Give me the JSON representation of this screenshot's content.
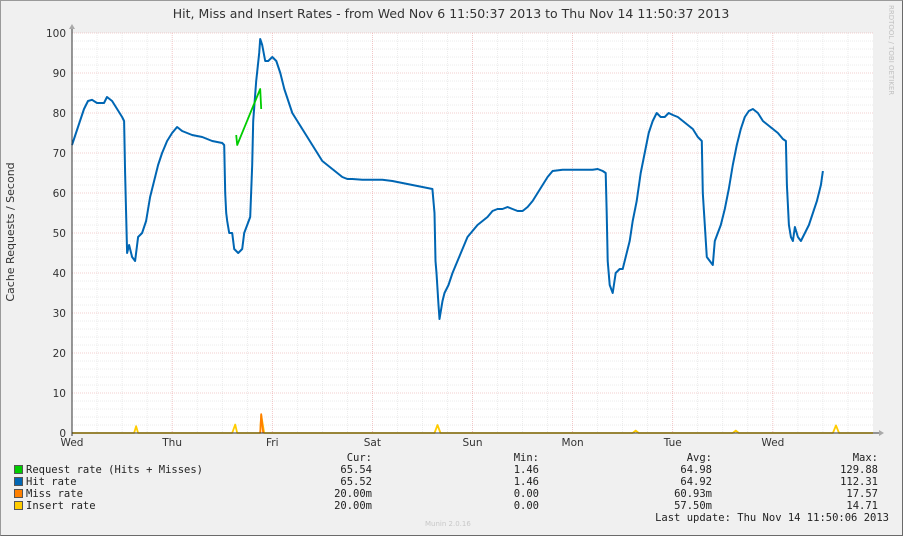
{
  "chart_data": {
    "type": "line",
    "title": "Hit, Miss and Insert Rates - from Wed Nov  6 11:50:37 2013 to Thu Nov 14 11:50:37 2013",
    "ylabel": "Cache Requests / Second",
    "watermark": "RRDTOOL / TOBI OETIKER",
    "ylim": [
      0,
      100
    ],
    "yticks": [
      0,
      10,
      20,
      30,
      40,
      50,
      60,
      70,
      80,
      90,
      100
    ],
    "xlim": [
      0,
      8
    ],
    "xticks": [
      {
        "x": 0,
        "label": "Wed"
      },
      {
        "x": 1,
        "label": "Thu"
      },
      {
        "x": 2,
        "label": "Fri"
      },
      {
        "x": 3,
        "label": "Sat"
      },
      {
        "x": 4,
        "label": "Sun"
      },
      {
        "x": 5,
        "label": "Mon"
      },
      {
        "x": 6,
        "label": "Tue"
      },
      {
        "x": 7,
        "label": "Wed"
      }
    ],
    "grid": true,
    "colors": {
      "background": "#f0f0f0",
      "plot_bg": "#ffffff",
      "grid_major": "#e8a0a0",
      "grid_minor": "#d8d8d8"
    },
    "series": [
      {
        "name": "Request rate (Hits + Misses)",
        "color": "#00cc00",
        "points": [
          [
            1.64,
            74.5
          ],
          [
            1.65,
            72.0
          ],
          [
            1.88,
            86
          ],
          [
            1.89,
            81
          ]
        ]
      },
      {
        "name": "Hit rate",
        "color": "#0066b3",
        "points": [
          [
            0,
            72
          ],
          [
            0.04,
            75
          ],
          [
            0.08,
            78
          ],
          [
            0.12,
            81
          ],
          [
            0.16,
            83
          ],
          [
            0.2,
            83.3
          ],
          [
            0.25,
            82.5
          ],
          [
            0.32,
            82.5
          ],
          [
            0.35,
            84
          ],
          [
            0.4,
            83
          ],
          [
            0.45,
            81
          ],
          [
            0.5,
            79
          ],
          [
            0.52,
            78
          ],
          [
            0.53,
            65
          ],
          [
            0.54,
            55
          ],
          [
            0.55,
            45
          ],
          [
            0.57,
            47
          ],
          [
            0.6,
            44
          ],
          [
            0.63,
            43
          ],
          [
            0.66,
            49
          ],
          [
            0.7,
            50
          ],
          [
            0.74,
            53
          ],
          [
            0.78,
            59
          ],
          [
            0.82,
            63
          ],
          [
            0.86,
            67
          ],
          [
            0.9,
            70
          ],
          [
            0.95,
            73
          ],
          [
            1.0,
            75
          ],
          [
            1.05,
            76.5
          ],
          [
            1.1,
            75.5
          ],
          [
            1.15,
            75
          ],
          [
            1.2,
            74.5
          ],
          [
            1.3,
            74
          ],
          [
            1.4,
            73
          ],
          [
            1.5,
            72.5
          ],
          [
            1.52,
            72
          ],
          [
            1.53,
            60
          ],
          [
            1.54,
            55
          ],
          [
            1.55,
            53
          ],
          [
            1.57,
            50
          ],
          [
            1.6,
            50
          ],
          [
            1.62,
            46
          ],
          [
            1.66,
            45
          ],
          [
            1.7,
            46
          ],
          [
            1.72,
            50
          ],
          [
            1.75,
            52
          ],
          [
            1.78,
            54
          ],
          [
            1.8,
            67
          ],
          [
            1.81,
            78
          ],
          [
            1.84,
            88
          ],
          [
            1.87,
            95
          ],
          [
            1.88,
            98.5
          ],
          [
            1.9,
            97
          ],
          [
            1.93,
            93
          ],
          [
            1.96,
            93
          ],
          [
            2.0,
            94
          ],
          [
            2.04,
            93
          ],
          [
            2.08,
            90
          ],
          [
            2.12,
            86
          ],
          [
            2.16,
            83
          ],
          [
            2.2,
            80
          ],
          [
            2.25,
            78
          ],
          [
            2.3,
            76
          ],
          [
            2.35,
            74
          ],
          [
            2.4,
            72
          ],
          [
            2.45,
            70
          ],
          [
            2.5,
            68
          ],
          [
            2.55,
            67
          ],
          [
            2.6,
            66
          ],
          [
            2.65,
            65
          ],
          [
            2.7,
            64
          ],
          [
            2.75,
            63.5
          ],
          [
            2.8,
            63.5
          ],
          [
            2.9,
            63.3
          ],
          [
            3.0,
            63.3
          ],
          [
            3.1,
            63.3
          ],
          [
            3.2,
            63
          ],
          [
            3.3,
            62.5
          ],
          [
            3.4,
            62
          ],
          [
            3.5,
            61.5
          ],
          [
            3.6,
            61
          ],
          [
            3.62,
            55
          ],
          [
            3.63,
            43
          ],
          [
            3.64,
            40
          ],
          [
            3.66,
            32
          ],
          [
            3.67,
            28.5
          ],
          [
            3.7,
            33
          ],
          [
            3.72,
            35
          ],
          [
            3.76,
            37
          ],
          [
            3.8,
            40
          ],
          [
            3.85,
            43
          ],
          [
            3.9,
            46
          ],
          [
            3.95,
            49
          ],
          [
            4.0,
            50.5
          ],
          [
            4.05,
            52
          ],
          [
            4.1,
            53
          ],
          [
            4.15,
            54
          ],
          [
            4.2,
            55.5
          ],
          [
            4.25,
            56
          ],
          [
            4.3,
            56
          ],
          [
            4.35,
            56.5
          ],
          [
            4.4,
            56
          ],
          [
            4.45,
            55.5
          ],
          [
            4.5,
            55.5
          ],
          [
            4.55,
            56.5
          ],
          [
            4.6,
            58
          ],
          [
            4.65,
            60
          ],
          [
            4.7,
            62
          ],
          [
            4.75,
            64
          ],
          [
            4.8,
            65.5
          ],
          [
            4.9,
            65.8
          ],
          [
            5.0,
            65.8
          ],
          [
            5.1,
            65.8
          ],
          [
            5.2,
            65.8
          ],
          [
            5.25,
            66
          ],
          [
            5.3,
            65.5
          ],
          [
            5.33,
            65
          ],
          [
            5.34,
            55
          ],
          [
            5.35,
            43
          ],
          [
            5.37,
            37
          ],
          [
            5.4,
            35
          ],
          [
            5.43,
            40
          ],
          [
            5.47,
            41
          ],
          [
            5.5,
            41
          ],
          [
            5.53,
            44
          ],
          [
            5.57,
            48
          ],
          [
            5.6,
            53
          ],
          [
            5.64,
            58
          ],
          [
            5.68,
            65
          ],
          [
            5.72,
            70
          ],
          [
            5.76,
            75
          ],
          [
            5.8,
            78
          ],
          [
            5.84,
            80
          ],
          [
            5.88,
            79
          ],
          [
            5.92,
            79
          ],
          [
            5.96,
            80
          ],
          [
            6.0,
            79.5
          ],
          [
            6.05,
            79
          ],
          [
            6.1,
            78
          ],
          [
            6.15,
            77
          ],
          [
            6.2,
            76
          ],
          [
            6.25,
            74
          ],
          [
            6.29,
            73
          ],
          [
            6.3,
            60
          ],
          [
            6.32,
            52
          ],
          [
            6.34,
            44
          ],
          [
            6.37,
            43
          ],
          [
            6.4,
            42
          ],
          [
            6.42,
            48
          ],
          [
            6.45,
            50
          ],
          [
            6.48,
            52
          ],
          [
            6.52,
            56
          ],
          [
            6.56,
            61
          ],
          [
            6.6,
            67
          ],
          [
            6.64,
            72
          ],
          [
            6.68,
            76
          ],
          [
            6.72,
            79
          ],
          [
            6.76,
            80.5
          ],
          [
            6.8,
            81
          ],
          [
            6.85,
            80
          ],
          [
            6.9,
            78
          ],
          [
            6.95,
            77
          ],
          [
            7.0,
            76
          ],
          [
            7.05,
            75
          ],
          [
            7.1,
            73.5
          ],
          [
            7.13,
            73
          ],
          [
            7.14,
            62
          ],
          [
            7.16,
            52
          ],
          [
            7.18,
            49
          ],
          [
            7.2,
            48
          ],
          [
            7.22,
            51.5
          ],
          [
            7.25,
            49
          ],
          [
            7.28,
            48
          ],
          [
            7.32,
            50
          ],
          [
            7.36,
            52
          ],
          [
            7.4,
            55
          ],
          [
            7.44,
            58
          ],
          [
            7.48,
            62
          ],
          [
            7.5,
            65.5
          ]
        ]
      },
      {
        "name": "Miss rate",
        "color": "#ff8000",
        "points": [
          [
            1.88,
            0
          ],
          [
            1.89,
            4.7
          ],
          [
            1.91,
            0
          ]
        ]
      },
      {
        "name": "Insert rate",
        "color": "#ffcc00",
        "points": [
          [
            0,
            0
          ],
          [
            0.62,
            0
          ],
          [
            0.64,
            1.7
          ],
          [
            0.66,
            0
          ],
          [
            1.6,
            0
          ],
          [
            1.63,
            2.1
          ],
          [
            1.65,
            0
          ],
          [
            1.88,
            0
          ],
          [
            1.89,
            4.5
          ],
          [
            1.92,
            0
          ],
          [
            3.62,
            0
          ],
          [
            3.65,
            2.0
          ],
          [
            3.68,
            0
          ],
          [
            5.6,
            0
          ],
          [
            5.63,
            0.6
          ],
          [
            5.66,
            0
          ],
          [
            6.6,
            0
          ],
          [
            6.63,
            0.6
          ],
          [
            6.66,
            0
          ],
          [
            7.6,
            0
          ],
          [
            7.63,
            1.9
          ],
          [
            7.66,
            0
          ],
          [
            8,
            0
          ]
        ]
      }
    ]
  },
  "legend": {
    "columns": {
      "cur": "Cur:",
      "min": "Min:",
      "avg": "Avg:",
      "max": "Max:"
    },
    "rows": [
      {
        "label": "Request rate (Hits + Misses)",
        "color": "#00cc00",
        "cur": "65.54",
        "min": "1.46",
        "avg": "64.98",
        "max": "129.88"
      },
      {
        "label": "Hit rate",
        "color": "#0066b3",
        "cur": "65.52",
        "min": "1.46",
        "avg": "64.92",
        "max": "112.31"
      },
      {
        "label": "Miss rate",
        "color": "#ff8000",
        "cur": "20.00m",
        "min": "0.00",
        "avg": "60.93m",
        "max": "17.57"
      },
      {
        "label": "Insert rate",
        "color": "#ffcc00",
        "cur": "20.00m",
        "min": "0.00",
        "avg": "57.50m",
        "max": "14.71"
      }
    ]
  },
  "last_update": "Last update: Thu Nov 14 11:50:06 2013",
  "version": "Munin 2.0.16"
}
